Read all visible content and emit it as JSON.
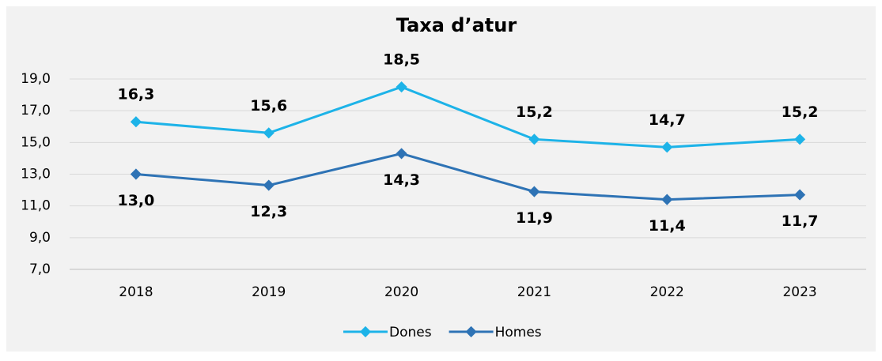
{
  "chart_data": {
    "type": "line",
    "title": "Taxa d’atur",
    "categories": [
      "2018",
      "2019",
      "2020",
      "2021",
      "2022",
      "2023"
    ],
    "series": [
      {
        "name": "Dones",
        "color": "#1db3e8",
        "values": [
          16.3,
          15.6,
          18.5,
          15.2,
          14.7,
          15.2
        ],
        "value_labels": [
          "16,3",
          "15,6",
          "18,5",
          "15,2",
          "14,7",
          "15,2"
        ]
      },
      {
        "name": "Homes",
        "color": "#2e73b5",
        "values": [
          13.0,
          12.3,
          14.3,
          11.9,
          11.4,
          11.7
        ],
        "value_labels": [
          "13,0",
          "12,3",
          "14,3",
          "11,9",
          "11,4",
          "11,7"
        ]
      }
    ],
    "ylim": [
      7,
      19
    ],
    "yticks": [
      {
        "value": 7,
        "label": "7,0"
      },
      {
        "value": 9,
        "label": "9,0"
      },
      {
        "value": 11,
        "label": "11,0"
      },
      {
        "value": 13,
        "label": "13,0"
      },
      {
        "value": 15,
        "label": "15,0"
      },
      {
        "value": 17,
        "label": "17,0"
      },
      {
        "value": 19,
        "label": "19,0"
      }
    ],
    "grid": true,
    "legend": "bottom"
  }
}
